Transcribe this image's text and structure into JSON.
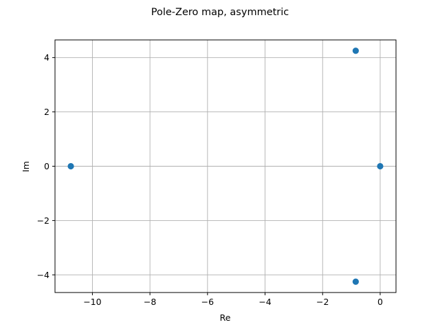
{
  "colors": {
    "marker": "#1f77b4",
    "grid": "#b0b0b0",
    "axes": "#000000",
    "background": "#ffffff"
  },
  "chart_data": {
    "type": "scatter",
    "title": "Pole-Zero map, asymmetric",
    "xlabel": "Re",
    "ylabel": "Im",
    "xlim": [
      -11.3,
      0.55
    ],
    "ylim": [
      -4.65,
      4.65
    ],
    "grid": true,
    "xticks": [
      -10,
      -8,
      -6,
      -4,
      -2,
      0
    ],
    "xtick_labels": [
      "−10",
      "−8",
      "−6",
      "−4",
      "−2",
      "0"
    ],
    "yticks": [
      -4,
      -2,
      0,
      2,
      4
    ],
    "ytick_labels": [
      "−4",
      "−2",
      "0",
      "2",
      "4"
    ],
    "points": [
      {
        "x": -10.75,
        "y": 0
      },
      {
        "x": -0.85,
        "y": 4.25
      },
      {
        "x": -0.85,
        "y": -4.25
      },
      {
        "x": 0,
        "y": 0
      }
    ]
  }
}
